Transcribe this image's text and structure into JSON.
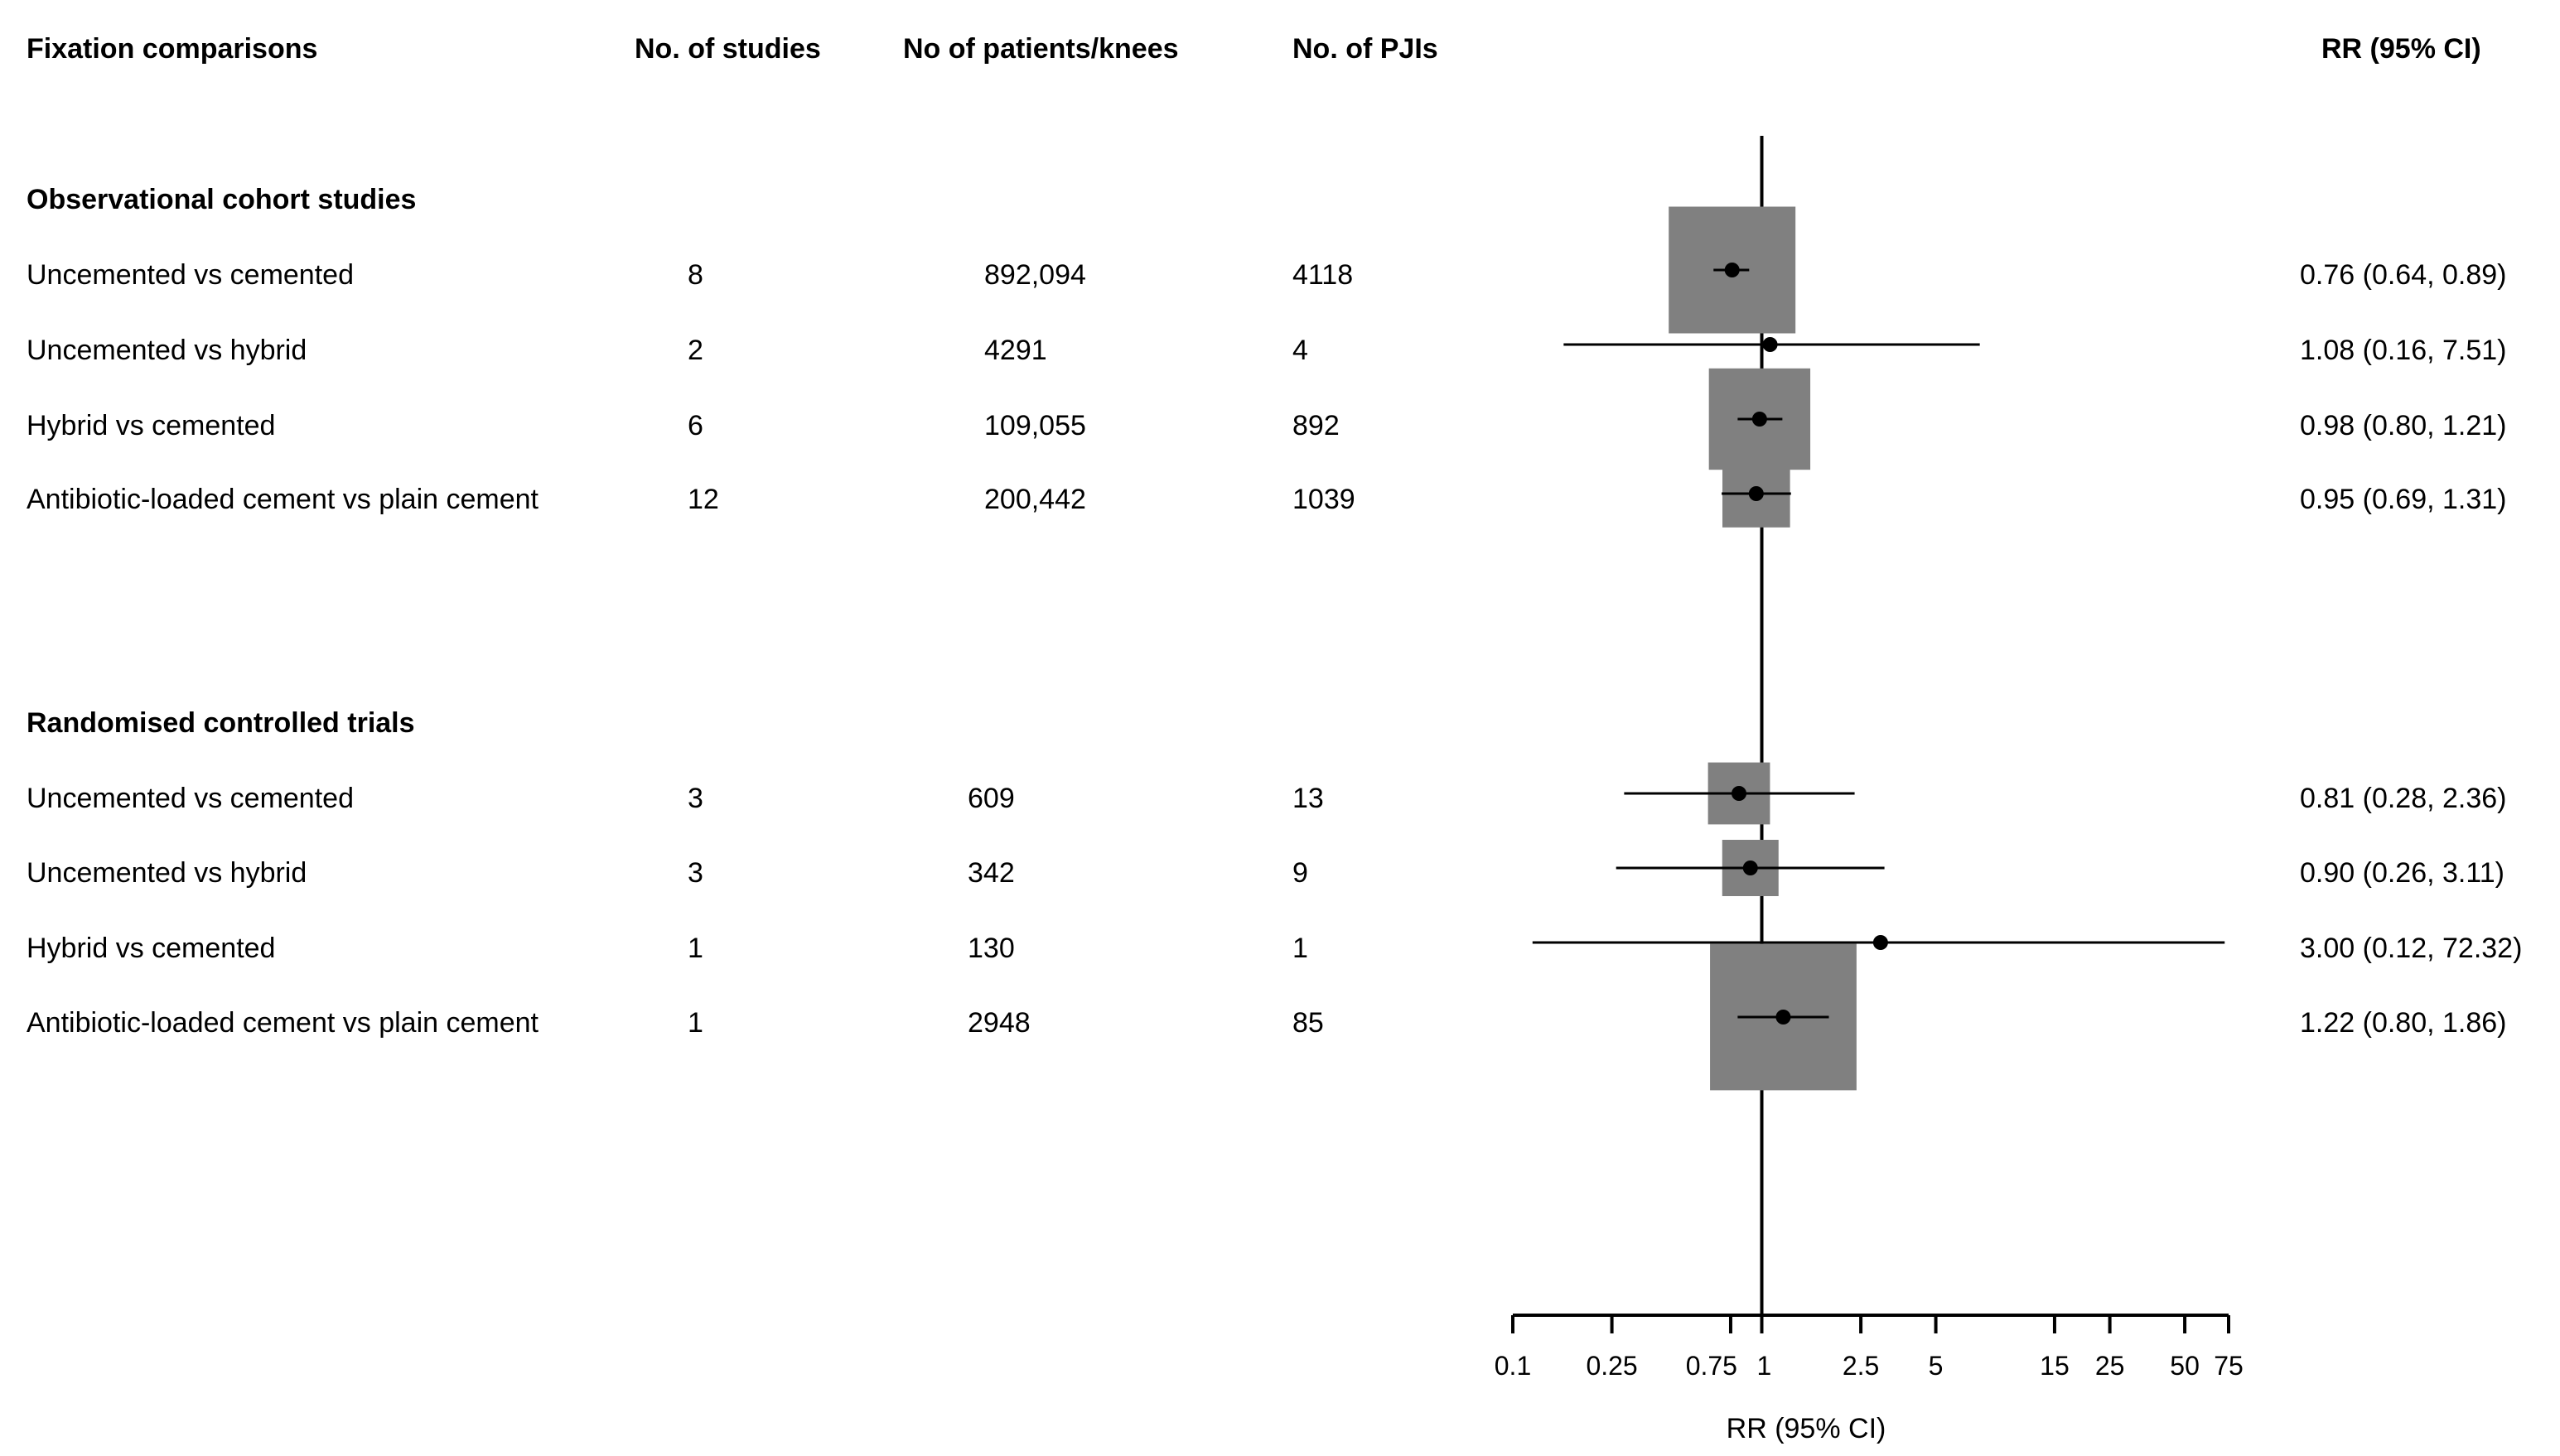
{
  "headers": {
    "comparison": "Fixation comparisons",
    "studies": "No. of studies",
    "patients": "No of patients/knees",
    "pjis": "No. of PJIs",
    "rr": "RR (95% CI)"
  },
  "sections": [
    {
      "title": "Observational cohort studies",
      "rows": [
        {
          "comparison": "Uncemented vs cemented",
          "studies": "8",
          "patients": "892,094",
          "pjis": "4118",
          "rr_text": "0.76 (0.64, 0.89)"
        },
        {
          "comparison": "Uncemented vs hybrid",
          "studies": "2",
          "patients": "4291",
          "pjis": "4",
          "rr_text": "1.08 (0.16, 7.51)"
        },
        {
          "comparison": "Hybrid vs cemented",
          "studies": "6",
          "patients": "109,055",
          "pjis": "892",
          "rr_text": "0.98 (0.80, 1.21)"
        },
        {
          "comparison": "Antibiotic-loaded cement vs plain cement",
          "studies": "12",
          "patients": "200,442",
          "pjis": "1039",
          "rr_text": "0.95 (0.69, 1.31)"
        }
      ]
    },
    {
      "title": "Randomised controlled trials",
      "rows": [
        {
          "comparison": "Uncemented vs cemented",
          "studies": "3",
          "patients": "609",
          "pjis": "13",
          "rr_text": "0.81 (0.28, 2.36)"
        },
        {
          "comparison": "Uncemented vs hybrid",
          "studies": "3",
          "patients": "342",
          "pjis": "9",
          "rr_text": "0.90 (0.26, 3.11)"
        },
        {
          "comparison": "Hybrid vs cemented",
          "studies": "1",
          "patients": "130",
          "pjis": "1",
          "rr_text": "3.00 (0.12, 72.32)"
        },
        {
          "comparison": "Antibiotic-loaded cement vs plain cement",
          "studies": "1",
          "patients": "2948",
          "pjis": "85",
          "rr_text": "1.22 (0.80, 1.86)"
        }
      ]
    }
  ],
  "chart_data": {
    "type": "forest",
    "xscale": "log",
    "xlabel": "RR (95% CI)",
    "xlim": [
      0.1,
      75
    ],
    "reference_line": 1,
    "ticks": [
      {
        "value": 0.1,
        "label": "0.1"
      },
      {
        "value": 0.25,
        "label": "0.25"
      },
      {
        "value": 0.75,
        "label": "0.75"
      },
      {
        "value": 1,
        "label": "1"
      },
      {
        "value": 2.5,
        "label": "2.5"
      },
      {
        "value": 5,
        "label": "5"
      },
      {
        "value": 15,
        "label": "15"
      },
      {
        "value": 25,
        "label": "25"
      },
      {
        "value": 50,
        "label": "50"
      },
      {
        "value": 75,
        "label": "75"
      }
    ],
    "estimates": [
      {
        "group": "Observational cohort studies",
        "label": "Uncemented vs cemented",
        "rr": 0.76,
        "lower": 0.64,
        "upper": 0.89,
        "weight_box": 4.5
      },
      {
        "group": "Observational cohort studies",
        "label": "Uncemented vs hybrid",
        "rr": 1.08,
        "lower": 0.16,
        "upper": 7.51,
        "weight_box": 0.4
      },
      {
        "group": "Observational cohort studies",
        "label": "Hybrid vs cemented",
        "rr": 0.98,
        "lower": 0.8,
        "upper": 1.21,
        "weight_box": 3.6
      },
      {
        "group": "Observational cohort studies",
        "label": "Antibiotic-loaded cement vs plain cement",
        "rr": 0.95,
        "lower": 0.69,
        "upper": 1.31,
        "weight_box": 2.4
      },
      {
        "group": "Randomised controlled trials",
        "label": "Uncemented vs cemented",
        "rr": 0.81,
        "lower": 0.28,
        "upper": 2.36,
        "weight_box": 2.2
      },
      {
        "group": "Randomised controlled trials",
        "label": "Uncemented vs hybrid",
        "rr": 0.9,
        "lower": 0.26,
        "upper": 3.11,
        "weight_box": 2.0
      },
      {
        "group": "Randomised controlled trials",
        "label": "Hybrid vs cemented",
        "rr": 3.0,
        "lower": 0.12,
        "upper": 72.32,
        "weight_box": 0.4
      },
      {
        "group": "Randomised controlled trials",
        "label": "Antibiotic-loaded cement vs plain cement",
        "rr": 1.22,
        "lower": 0.8,
        "upper": 1.86,
        "weight_box": 5.2
      }
    ]
  }
}
